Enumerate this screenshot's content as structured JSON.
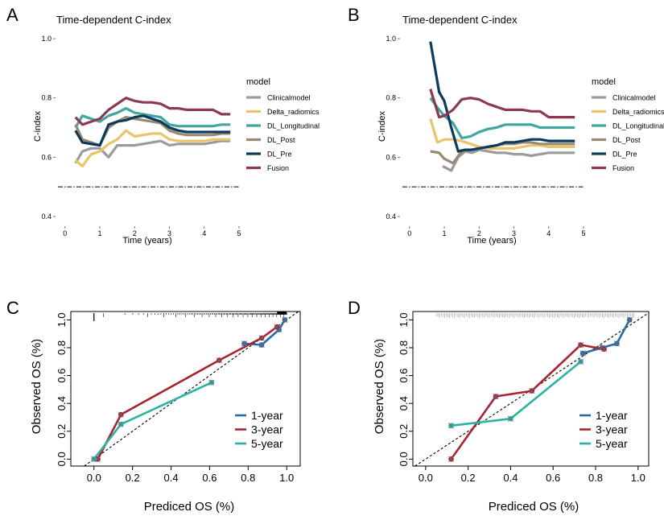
{
  "colors": {
    "Clinicalmodel": "#9b9b9b",
    "Delta_radiomics": "#e9c46a",
    "DL_Longitudinal": "#3fa6a0",
    "DL_Post": "#9a8a73",
    "DL_Pre": "#0d3a5c",
    "Fusion": "#8b3a52",
    "1-year": "#2c6aa6",
    "3-year": "#a8252f",
    "5-year": "#2ab3a0"
  },
  "chart_data": [
    {
      "panel": "A",
      "type": "line",
      "title": "Time-dependent C-index",
      "xlabel": "Time (years)",
      "ylabel": "C-index",
      "xlim": [
        -0.25,
        5.0
      ],
      "ylim": [
        0.37,
        1.03
      ],
      "xticks": [
        "0",
        "1",
        "2",
        "3",
        "4",
        "5"
      ],
      "yticks": [
        "0.4",
        "0.6",
        "0.8",
        "1.0"
      ],
      "legend_title": "model",
      "reference_line": 0.5,
      "series": [
        {
          "name": "Clinicalmodel",
          "x": [
            0.3,
            0.5,
            0.75,
            1.0,
            1.25,
            1.5,
            1.75,
            2.0,
            2.25,
            2.5,
            2.75,
            3.0,
            3.25,
            3.5,
            3.75,
            4.0,
            4.25,
            4.5,
            4.75
          ],
          "values": [
            0.58,
            0.62,
            0.63,
            0.63,
            0.6,
            0.64,
            0.64,
            0.64,
            0.645,
            0.65,
            0.655,
            0.64,
            0.645,
            0.645,
            0.645,
            0.645,
            0.65,
            0.655,
            0.655
          ]
        },
        {
          "name": "Delta_radiomics",
          "x": [
            0.3,
            0.5,
            0.75,
            1.0,
            1.25,
            1.5,
            1.75,
            2.0,
            2.25,
            2.5,
            2.75,
            3.0,
            3.25,
            3.5,
            3.75,
            4.0,
            4.25,
            4.5,
            4.75
          ],
          "values": [
            0.59,
            0.57,
            0.61,
            0.62,
            0.645,
            0.66,
            0.69,
            0.67,
            0.675,
            0.68,
            0.68,
            0.66,
            0.655,
            0.655,
            0.655,
            0.655,
            0.66,
            0.66,
            0.66
          ]
        },
        {
          "name": "DL_Longitudinal",
          "x": [
            0.3,
            0.5,
            0.75,
            1.0,
            1.25,
            1.5,
            1.75,
            2.0,
            2.25,
            2.5,
            2.75,
            3.0,
            3.25,
            3.5,
            3.75,
            4.0,
            4.25,
            4.5,
            4.75
          ],
          "values": [
            0.7,
            0.74,
            0.73,
            0.72,
            0.74,
            0.75,
            0.765,
            0.75,
            0.745,
            0.74,
            0.735,
            0.71,
            0.705,
            0.705,
            0.705,
            0.705,
            0.705,
            0.71,
            0.71
          ]
        },
        {
          "name": "DL_Post",
          "x": [
            0.3,
            0.5,
            0.75,
            1.0,
            1.25,
            1.5,
            1.75,
            2.0,
            2.25,
            2.5,
            2.75,
            3.0,
            3.25,
            3.5,
            3.75,
            4.0,
            4.25,
            4.5,
            4.75
          ],
          "values": [
            0.71,
            0.66,
            0.65,
            0.64,
            0.7,
            0.72,
            0.735,
            0.73,
            0.725,
            0.72,
            0.715,
            0.69,
            0.68,
            0.675,
            0.675,
            0.675,
            0.675,
            0.68,
            0.68
          ]
        },
        {
          "name": "DL_Pre",
          "x": [
            0.3,
            0.5,
            0.75,
            1.0,
            1.25,
            1.5,
            1.75,
            2.0,
            2.25,
            2.5,
            2.75,
            3.0,
            3.25,
            3.5,
            3.75,
            4.0,
            4.25,
            4.5,
            4.75
          ],
          "values": [
            0.69,
            0.65,
            0.645,
            0.64,
            0.71,
            0.72,
            0.725,
            0.735,
            0.74,
            0.73,
            0.72,
            0.7,
            0.69,
            0.685,
            0.685,
            0.685,
            0.685,
            0.685,
            0.685
          ]
        },
        {
          "name": "Fusion",
          "x": [
            0.3,
            0.5,
            0.75,
            1.0,
            1.25,
            1.5,
            1.75,
            2.0,
            2.25,
            2.5,
            2.75,
            3.0,
            3.25,
            3.5,
            3.75,
            4.0,
            4.25,
            4.5,
            4.75
          ],
          "values": [
            0.735,
            0.71,
            0.72,
            0.73,
            0.76,
            0.78,
            0.8,
            0.79,
            0.785,
            0.785,
            0.78,
            0.765,
            0.765,
            0.76,
            0.76,
            0.76,
            0.76,
            0.745,
            0.745
          ]
        }
      ]
    },
    {
      "panel": "B",
      "type": "line",
      "title": "Time-dependent C-index",
      "xlabel": "Time (years)",
      "ylabel": "C-index",
      "xlim": [
        -0.25,
        5.0
      ],
      "ylim": [
        0.37,
        1.03
      ],
      "xticks": [
        "0",
        "1",
        "2",
        "3",
        "4",
        "5"
      ],
      "yticks": [
        "0.4",
        "0.6",
        "0.8",
        "1.0"
      ],
      "legend_title": "model",
      "reference_line": 0.5,
      "series": [
        {
          "name": "Clinicalmodel",
          "x": [
            0.95,
            1.2,
            1.4,
            1.6,
            1.8,
            2.0,
            2.25,
            2.5,
            2.75,
            3.0,
            3.25,
            3.5,
            3.75,
            4.0,
            4.25,
            4.5,
            4.75
          ],
          "values": [
            0.57,
            0.555,
            0.6,
            0.62,
            0.615,
            0.625,
            0.62,
            0.615,
            0.615,
            0.61,
            0.61,
            0.605,
            0.61,
            0.615,
            0.615,
            0.615,
            0.615
          ]
        },
        {
          "name": "Delta_radiomics",
          "x": [
            0.6,
            0.8,
            1.0,
            1.25,
            1.5,
            1.75,
            2.0,
            2.25,
            2.5,
            2.75,
            3.0,
            3.25,
            3.5,
            3.75,
            4.0,
            4.25,
            4.5,
            4.75
          ],
          "values": [
            0.73,
            0.65,
            0.66,
            0.66,
            0.655,
            0.645,
            0.635,
            0.63,
            0.63,
            0.63,
            0.63,
            0.635,
            0.64,
            0.64,
            0.635,
            0.635,
            0.635,
            0.635
          ]
        },
        {
          "name": "DL_Longitudinal",
          "x": [
            0.6,
            0.85,
            1.0,
            1.25,
            1.5,
            1.75,
            2.0,
            2.25,
            2.5,
            2.75,
            3.0,
            3.25,
            3.5,
            3.75,
            4.0,
            4.25,
            4.5,
            4.75
          ],
          "values": [
            0.8,
            0.76,
            0.74,
            0.715,
            0.665,
            0.67,
            0.685,
            0.695,
            0.7,
            0.71,
            0.71,
            0.71,
            0.71,
            0.7,
            0.7,
            0.7,
            0.7,
            0.7
          ]
        },
        {
          "name": "DL_Post",
          "x": [
            0.6,
            0.85,
            1.0,
            1.25,
            1.5,
            1.75,
            2.0,
            2.25,
            2.5,
            2.75,
            3.0,
            3.25,
            3.5,
            3.75,
            4.0,
            4.25,
            4.5,
            4.75
          ],
          "values": [
            0.62,
            0.615,
            0.595,
            0.58,
            0.62,
            0.625,
            0.63,
            0.635,
            0.64,
            0.645,
            0.645,
            0.65,
            0.65,
            0.645,
            0.645,
            0.645,
            0.645,
            0.645
          ]
        },
        {
          "name": "DL_Pre",
          "x": [
            0.6,
            0.85,
            1.0,
            1.2,
            1.4,
            1.6,
            1.8,
            2.0,
            2.25,
            2.5,
            2.75,
            3.0,
            3.25,
            3.5,
            3.75,
            4.0,
            4.25,
            4.5,
            4.75
          ],
          "values": [
            0.99,
            0.82,
            0.79,
            0.7,
            0.62,
            0.625,
            0.625,
            0.63,
            0.635,
            0.64,
            0.65,
            0.65,
            0.655,
            0.66,
            0.66,
            0.655,
            0.655,
            0.655,
            0.655
          ]
        },
        {
          "name": "Fusion",
          "x": [
            0.6,
            0.85,
            1.0,
            1.25,
            1.5,
            1.75,
            2.0,
            2.25,
            2.5,
            2.75,
            3.0,
            3.25,
            3.5,
            3.75,
            4.0,
            4.25,
            4.5,
            4.75
          ],
          "values": [
            0.83,
            0.735,
            0.74,
            0.76,
            0.795,
            0.8,
            0.795,
            0.78,
            0.77,
            0.76,
            0.76,
            0.76,
            0.755,
            0.755,
            0.735,
            0.735,
            0.735,
            0.735
          ]
        }
      ]
    },
    {
      "panel": "C",
      "type": "scatter",
      "xlabel": "Prediced OS (%)",
      "ylabel": "Observed OS (%)",
      "xlim": [
        -0.12,
        1.07
      ],
      "ylim": [
        -0.05,
        1.06
      ],
      "xticks": [
        "0.0",
        "0.2",
        "0.4",
        "0.6",
        "0.8",
        "1.0"
      ],
      "yticks": [
        "0.0",
        "0.2",
        "0.4",
        "0.6",
        "0.8",
        "1.0"
      ],
      "diagonal": true,
      "series": [
        {
          "name": "1-year",
          "x": [
            0.78,
            0.87,
            0.96,
            0.99
          ],
          "values": [
            0.83,
            0.82,
            0.93,
            1.0
          ]
        },
        {
          "name": "3-year",
          "x": [
            0.02,
            0.14,
            0.65,
            0.87,
            0.95
          ],
          "values": [
            0.0,
            0.32,
            0.71,
            0.87,
            0.95
          ]
        },
        {
          "name": "5-year",
          "x": [
            0.0,
            0.14,
            0.61
          ],
          "values": [
            0.0,
            0.25,
            0.55
          ]
        }
      ]
    },
    {
      "panel": "D",
      "type": "scatter",
      "xlabel": "Prediced OS (%)",
      "ylabel": "Observed OS (%)",
      "xlim": [
        -0.06,
        1.05
      ],
      "ylim": [
        -0.05,
        1.06
      ],
      "xticks": [
        "0.0",
        "0.2",
        "0.4",
        "0.6",
        "0.8",
        "1.0"
      ],
      "yticks": [
        "0.0",
        "0.2",
        "0.4",
        "0.6",
        "0.8",
        "1.0"
      ],
      "diagonal": true,
      "series": [
        {
          "name": "1-year",
          "x": [
            0.74,
            0.83,
            0.9,
            0.96
          ],
          "values": [
            0.76,
            0.8,
            0.83,
            1.0
          ]
        },
        {
          "name": "3-year",
          "x": [
            0.12,
            0.33,
            0.5,
            0.73,
            0.84
          ],
          "values": [
            0.0,
            0.45,
            0.49,
            0.82,
            0.79
          ]
        },
        {
          "name": "5-year",
          "x": [
            0.12,
            0.4,
            0.73
          ],
          "values": [
            0.24,
            0.29,
            0.7
          ]
        }
      ]
    }
  ],
  "panels": {
    "A": {
      "letter": "A",
      "title": "Time-dependent C-index",
      "xlabel": "Time (years)",
      "ylabel": "C-index",
      "legend_title": "model"
    },
    "B": {
      "letter": "B",
      "title": "Time-dependent C-index",
      "xlabel": "Time (years)",
      "ylabel": "C-index",
      "legend_title": "model"
    },
    "C": {
      "letter": "C",
      "xlabel": "Prediced OS (%)",
      "ylabel": "Observed OS (%)"
    },
    "D": {
      "letter": "D",
      "xlabel": "Prediced OS (%)",
      "ylabel": "Observed OS (%)"
    }
  },
  "legend_models": [
    "Clinicalmodel",
    "Delta_radiomics",
    "DL_Longitudinal",
    "DL_Post",
    "DL_Pre",
    "Fusion"
  ],
  "legend_years": [
    "1-year",
    "3-year",
    "5-year"
  ]
}
